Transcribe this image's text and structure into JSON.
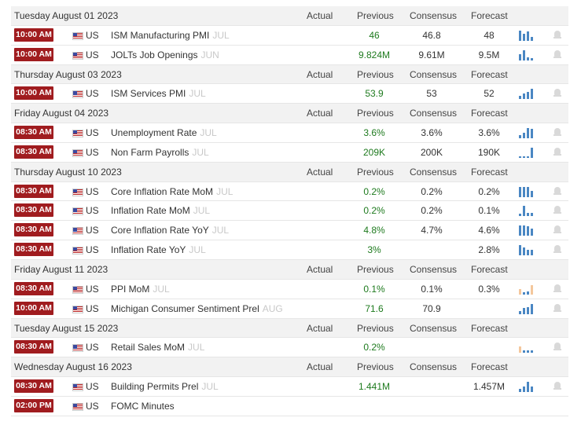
{
  "columns": {
    "actual": "Actual",
    "previous": "Previous",
    "consensus": "Consensus",
    "forecast": "Forecast"
  },
  "groups": [
    {
      "date": "Tuesday August 01 2023",
      "events": [
        {
          "time": "10:00 AM",
          "country": "US",
          "name": "ISM Manufacturing PMI",
          "ref": "JUL",
          "actual": "",
          "previous": "46",
          "consensus": "46.8",
          "forecast": "48",
          "spark": [
            1,
            0.7,
            0.9,
            0.4
          ],
          "spark_colors": [
            "#4a87c3",
            "#4a87c3",
            "#4a87c3",
            "#4a87c3"
          ]
        },
        {
          "time": "10:00 AM",
          "country": "US",
          "name": "JOLTs Job Openings",
          "ref": "JUN",
          "actual": "",
          "previous": "9.824M",
          "consensus": "9.61M",
          "forecast": "9.5M",
          "spark": [
            0.6,
            1,
            0.3,
            0.2
          ],
          "spark_colors": [
            "#4a87c3",
            "#4a87c3",
            "#4a87c3",
            "#4a87c3"
          ]
        }
      ]
    },
    {
      "date": "Thursday August 03 2023",
      "events": [
        {
          "time": "10:00 AM",
          "country": "US",
          "name": "ISM Services PMI",
          "ref": "JUL",
          "actual": "",
          "previous": "53.9",
          "consensus": "53",
          "forecast": "52",
          "spark": [
            0.3,
            0.5,
            0.7,
            1
          ],
          "spark_colors": [
            "#4a87c3",
            "#4a87c3",
            "#4a87c3",
            "#4a87c3"
          ]
        }
      ]
    },
    {
      "date": "Friday August 04 2023",
      "events": [
        {
          "time": "08:30 AM",
          "country": "US",
          "name": "Unemployment Rate",
          "ref": "JUL",
          "actual": "",
          "previous": "3.6%",
          "consensus": "3.6%",
          "forecast": "3.6%",
          "spark": [
            0.3,
            0.5,
            1,
            0.9
          ],
          "spark_colors": [
            "#4a87c3",
            "#4a87c3",
            "#4a87c3",
            "#4a87c3"
          ]
        },
        {
          "time": "08:30 AM",
          "country": "US",
          "name": "Non Farm Payrolls",
          "ref": "JUL",
          "actual": "",
          "previous": "209K",
          "consensus": "200K",
          "forecast": "190K",
          "spark": [
            0.15,
            0.15,
            0.15,
            1
          ],
          "spark_colors": [
            "#4a87c3",
            "#4a87c3",
            "#4a87c3",
            "#4a87c3"
          ]
        }
      ]
    },
    {
      "date": "Thursday August 10 2023",
      "events": [
        {
          "time": "08:30 AM",
          "country": "US",
          "name": "Core Inflation Rate MoM",
          "ref": "JUL",
          "actual": "",
          "previous": "0.2%",
          "consensus": "0.2%",
          "forecast": "0.2%",
          "spark": [
            1,
            1,
            1,
            0.6
          ],
          "spark_colors": [
            "#4a87c3",
            "#4a87c3",
            "#4a87c3",
            "#4a87c3"
          ]
        },
        {
          "time": "08:30 AM",
          "country": "US",
          "name": "Inflation Rate MoM",
          "ref": "JUL",
          "actual": "",
          "previous": "0.2%",
          "consensus": "0.2%",
          "forecast": "0.1%",
          "spark": [
            0.2,
            1,
            0.3,
            0.3
          ],
          "spark_colors": [
            "#4a87c3",
            "#4a87c3",
            "#4a87c3",
            "#4a87c3"
          ]
        },
        {
          "time": "08:30 AM",
          "country": "US",
          "name": "Core Inflation Rate YoY",
          "ref": "JUL",
          "actual": "",
          "previous": "4.8%",
          "consensus": "4.7%",
          "forecast": "4.6%",
          "spark": [
            1,
            1,
            0.9,
            0.7
          ],
          "spark_colors": [
            "#4a87c3",
            "#4a87c3",
            "#4a87c3",
            "#4a87c3"
          ]
        },
        {
          "time": "08:30 AM",
          "country": "US",
          "name": "Inflation Rate YoY",
          "ref": "JUL",
          "actual": "",
          "previous": "3%",
          "consensus": "",
          "forecast": "2.8%",
          "spark": [
            1,
            0.8,
            0.5,
            0.5
          ],
          "spark_colors": [
            "#4a87c3",
            "#4a87c3",
            "#4a87c3",
            "#4a87c3"
          ]
        }
      ]
    },
    {
      "date": "Friday August 11 2023",
      "events": [
        {
          "time": "08:30 AM",
          "country": "US",
          "name": "PPI MoM",
          "ref": "JUL",
          "actual": "",
          "previous": "0.1%",
          "consensus": "0.1%",
          "forecast": "0.3%",
          "spark": [
            0.5,
            0.2,
            0.3,
            0.9
          ],
          "spark_colors": [
            "#f4c79c",
            "#4a87c3",
            "#4a87c3",
            "#f4c79c"
          ]
        },
        {
          "time": "10:00 AM",
          "country": "US",
          "name": "Michigan Consumer Sentiment Prel",
          "ref": "AUG",
          "actual": "",
          "previous": "71.6",
          "consensus": "70.9",
          "forecast": "",
          "spark": [
            0.3,
            0.6,
            0.7,
            1
          ],
          "spark_colors": [
            "#4a87c3",
            "#4a87c3",
            "#4a87c3",
            "#4a87c3"
          ]
        }
      ]
    },
    {
      "date": "Tuesday August 15 2023",
      "events": [
        {
          "time": "08:30 AM",
          "country": "US",
          "name": "Retail Sales MoM",
          "ref": "JUL",
          "actual": "",
          "previous": "0.2%",
          "consensus": "",
          "forecast": "",
          "spark": [
            0.6,
            0.2,
            0.2,
            0.2
          ],
          "spark_colors": [
            "#f4c79c",
            "#4a87c3",
            "#4a87c3",
            "#4a87c3"
          ]
        }
      ]
    },
    {
      "date": "Wednesday August 16 2023",
      "events": [
        {
          "time": "08:30 AM",
          "country": "US",
          "name": "Building Permits Prel",
          "ref": "JUL",
          "actual": "",
          "previous": "1.441M",
          "consensus": "",
          "forecast": "1.457M",
          "spark": [
            0.3,
            0.5,
            1,
            0.5
          ],
          "spark_colors": [
            "#4a87c3",
            "#4a87c3",
            "#4a87c3",
            "#4a87c3"
          ]
        },
        {
          "time": "02:00 PM",
          "country": "US",
          "name": "FOMC Minutes",
          "ref": "",
          "actual": "",
          "previous": "",
          "consensus": "",
          "forecast": "",
          "spark": [],
          "spark_colors": []
        }
      ]
    }
  ]
}
